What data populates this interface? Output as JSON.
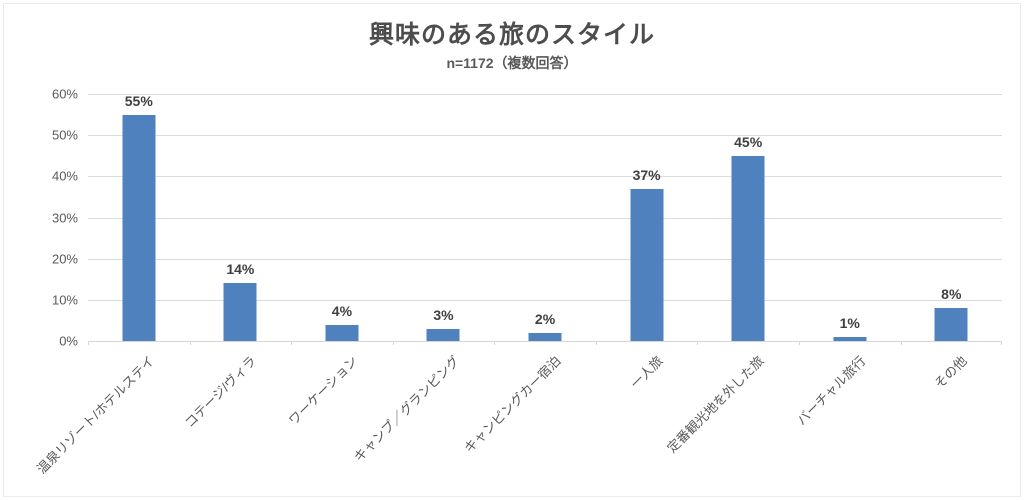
{
  "title": "興味のある旅のスタイル",
  "subtitle": "n=1172（複数回答）",
  "chart_data": {
    "type": "bar",
    "title": "興味のある旅のスタイル",
    "subtitle": "n=1172（複数回答）",
    "categories": [
      "温泉リゾート/ホテルステイ",
      "コテージ/ヴィラ",
      "ワーケーション",
      "キャンプ／グランピング",
      "キャンピングカー宿泊",
      "一人旅",
      "定番観光地を外した旅",
      "バーチャル旅行",
      "その他"
    ],
    "values": [
      55,
      14,
      4,
      3,
      2,
      37,
      45,
      1,
      8
    ],
    "data_labels": [
      "55%",
      "14%",
      "4%",
      "3%",
      "2%",
      "37%",
      "45%",
      "1%",
      "8%"
    ],
    "xlabel": "",
    "ylabel": "",
    "ylim": [
      0,
      60
    ],
    "y_ticks": [
      "0%",
      "10%",
      "20%",
      "30%",
      "40%",
      "50%",
      "60%"
    ],
    "grid": true,
    "legend": false,
    "bar_color": "#4E81BD",
    "grid_color": "#DCDCDC",
    "axis_text_color": "#595959",
    "data_label_color": "#3F3F3F",
    "title_color": "#4D4D4D"
  }
}
